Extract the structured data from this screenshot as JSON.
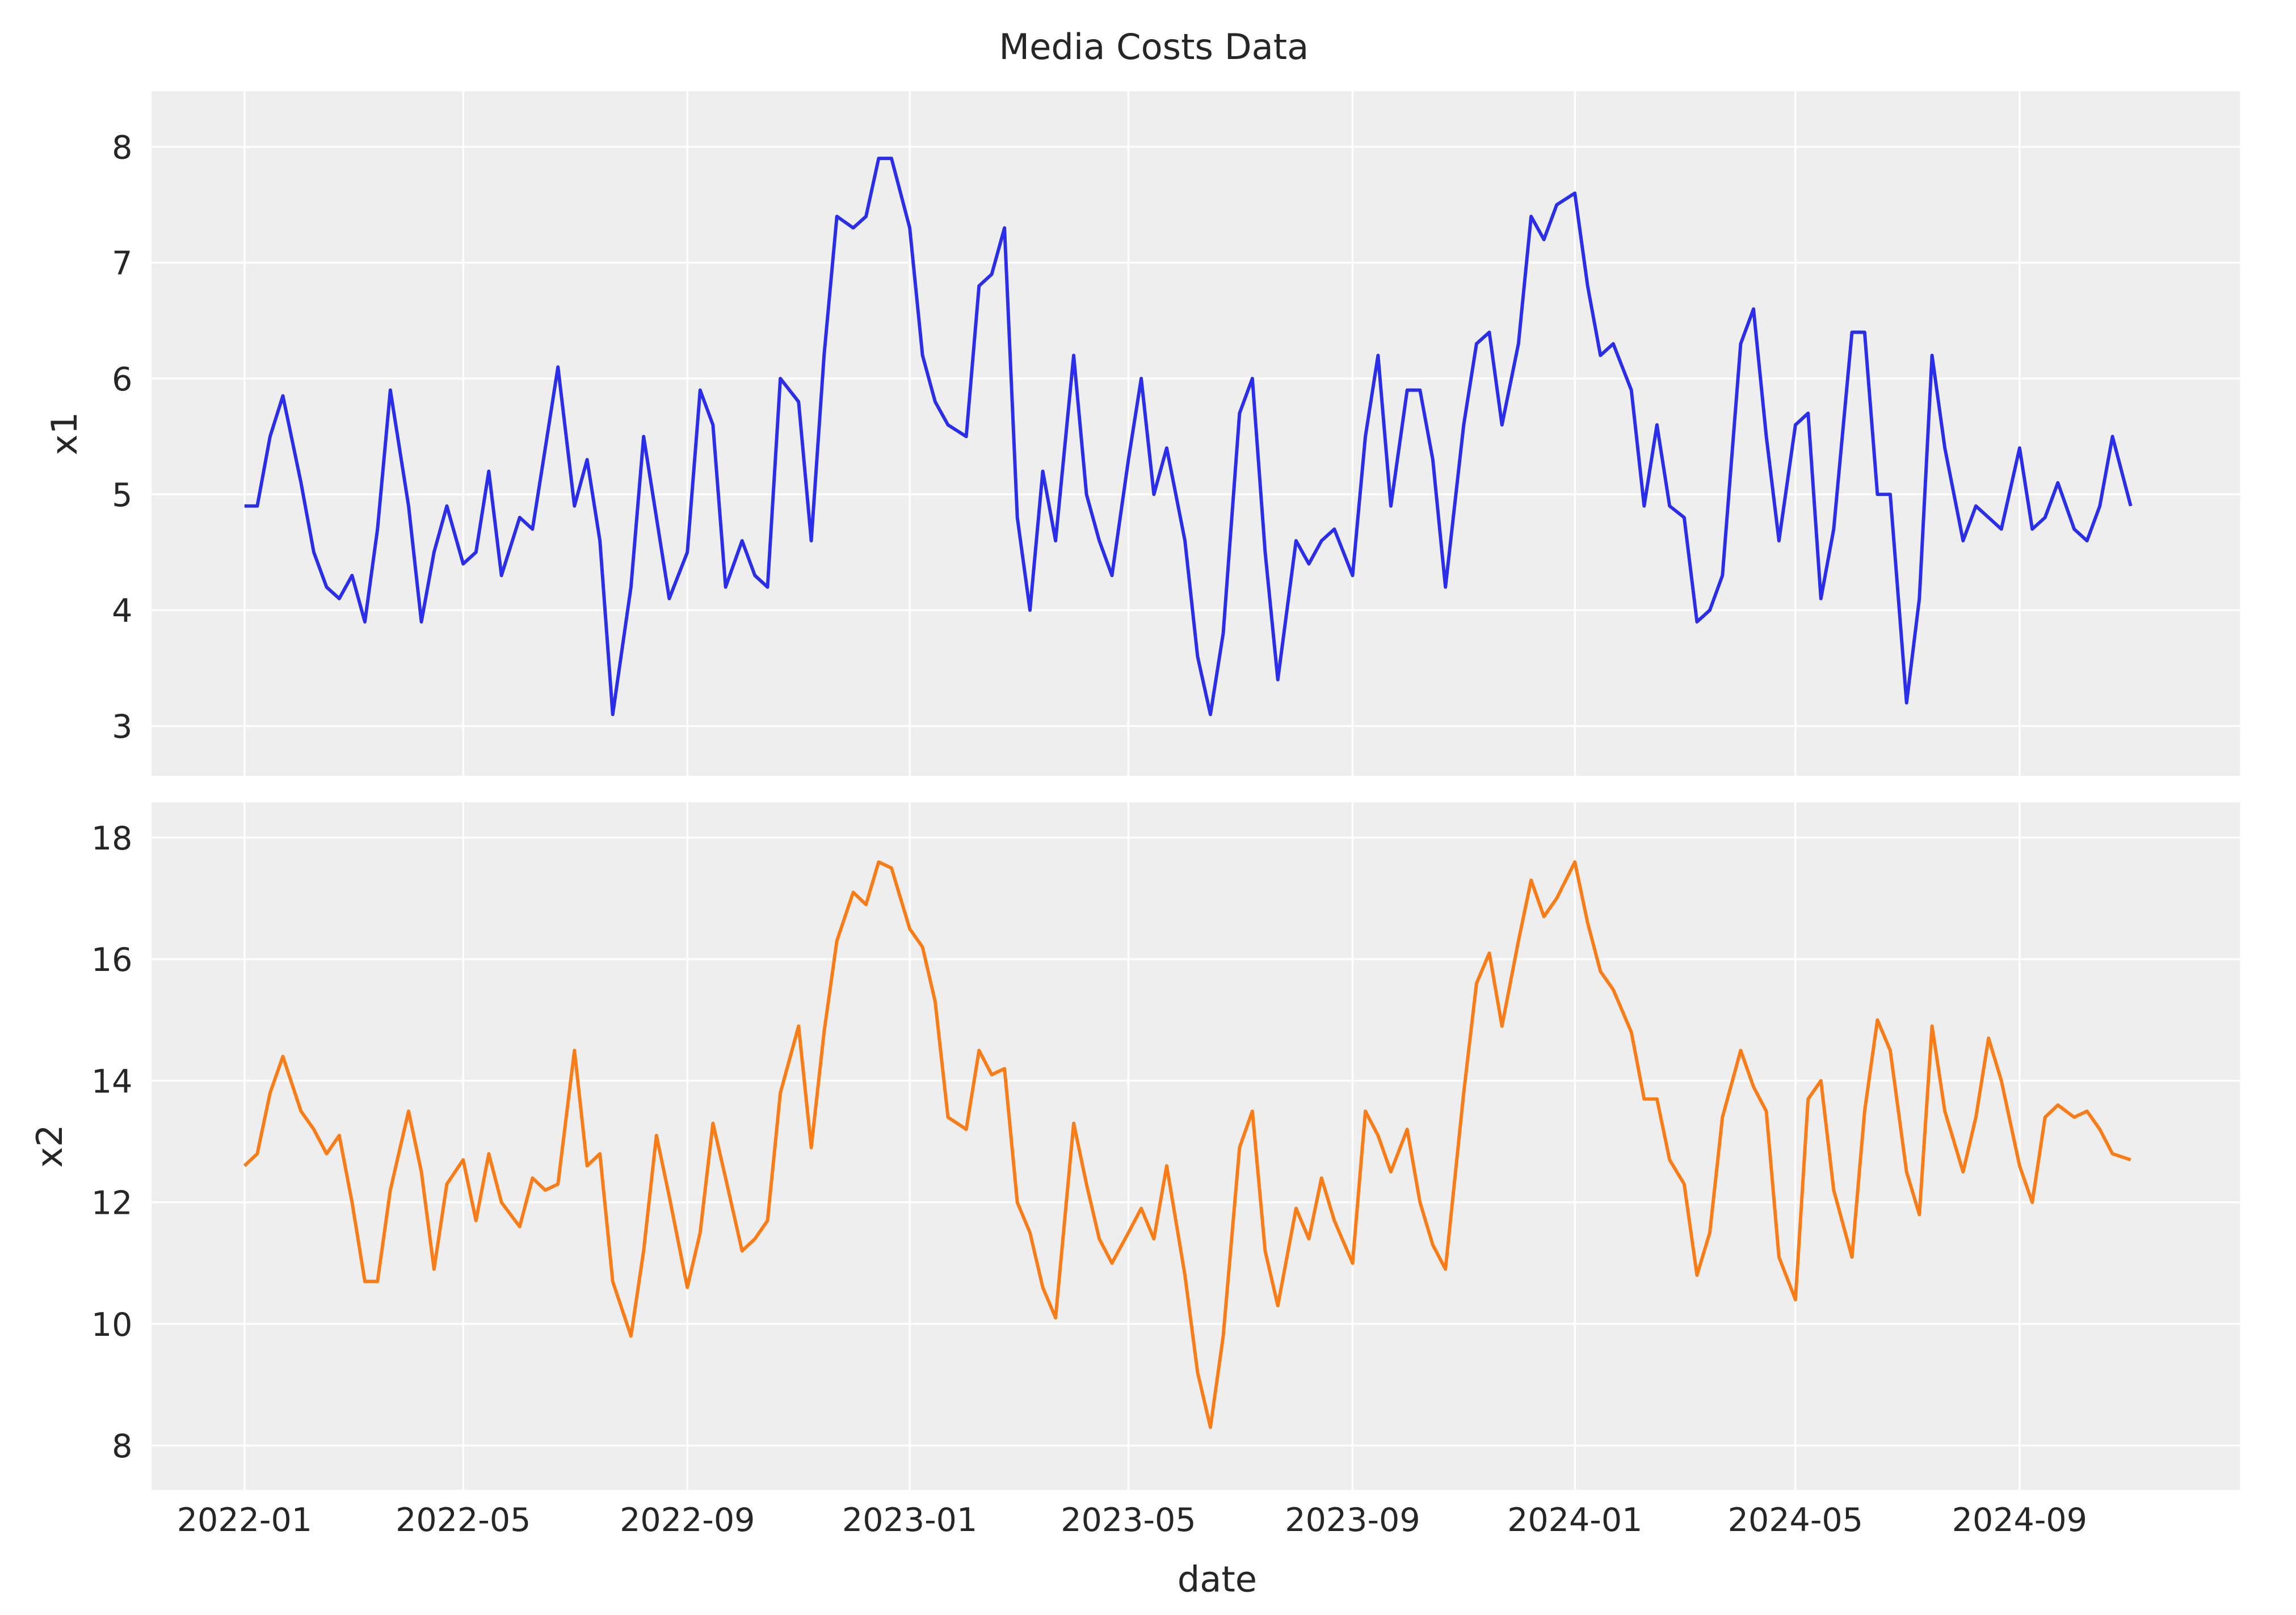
{
  "chart_data": {
    "type": "line",
    "title": "Media Costs Data",
    "xlabel": "date",
    "xlim": [
      "2021-11-11",
      "2024-12-31"
    ],
    "xticks": [
      "2022-01",
      "2022-05",
      "2022-09",
      "2023-01",
      "2023-05",
      "2023-09",
      "2024-01",
      "2024-05",
      "2024-09"
    ],
    "grid": true,
    "x": [
      "2022-01-01",
      "2022-01-08",
      "2022-01-15",
      "2022-01-22",
      "2022-02-01",
      "2022-02-08",
      "2022-02-15",
      "2022-02-22",
      "2022-03-01",
      "2022-03-08",
      "2022-03-15",
      "2022-03-22",
      "2022-04-01",
      "2022-04-08",
      "2022-04-15",
      "2022-04-22",
      "2022-05-01",
      "2022-05-08",
      "2022-05-15",
      "2022-05-22",
      "2022-06-01",
      "2022-06-08",
      "2022-06-15",
      "2022-06-22",
      "2022-07-01",
      "2022-07-08",
      "2022-07-15",
      "2022-07-22",
      "2022-08-01",
      "2022-08-08",
      "2022-08-15",
      "2022-08-22",
      "2022-09-01",
      "2022-09-08",
      "2022-09-15",
      "2022-09-22",
      "2022-10-01",
      "2022-10-08",
      "2022-10-15",
      "2022-10-22",
      "2022-11-01",
      "2022-11-08",
      "2022-11-15",
      "2022-11-22",
      "2022-12-01",
      "2022-12-08",
      "2022-12-15",
      "2022-12-22",
      "2023-01-01",
      "2023-01-08",
      "2023-01-15",
      "2023-01-22",
      "2023-02-01",
      "2023-02-08",
      "2023-02-15",
      "2023-02-22",
      "2023-03-01",
      "2023-03-08",
      "2023-03-15",
      "2023-03-22",
      "2023-04-01",
      "2023-04-08",
      "2023-04-15",
      "2023-04-22",
      "2023-05-01",
      "2023-05-08",
      "2023-05-15",
      "2023-05-22",
      "2023-06-01",
      "2023-06-08",
      "2023-06-15",
      "2023-06-22",
      "2023-07-01",
      "2023-07-08",
      "2023-07-15",
      "2023-07-22",
      "2023-08-01",
      "2023-08-08",
      "2023-08-15",
      "2023-08-22",
      "2023-09-01",
      "2023-09-08",
      "2023-09-15",
      "2023-09-22",
      "2023-10-01",
      "2023-10-08",
      "2023-10-15",
      "2023-10-22",
      "2023-11-01",
      "2023-11-08",
      "2023-11-15",
      "2023-11-22",
      "2023-12-01",
      "2023-12-08",
      "2023-12-15",
      "2023-12-22",
      "2024-01-01",
      "2024-01-08",
      "2024-01-15",
      "2024-01-22",
      "2024-02-01",
      "2024-02-08",
      "2024-02-15",
      "2024-02-22",
      "2024-03-01",
      "2024-03-08",
      "2024-03-15",
      "2024-03-22",
      "2024-04-01",
      "2024-04-08",
      "2024-04-15",
      "2024-04-22",
      "2024-05-01",
      "2024-05-08",
      "2024-05-15",
      "2024-05-22",
      "2024-06-01",
      "2024-06-08",
      "2024-06-15",
      "2024-06-22",
      "2024-07-01",
      "2024-07-08",
      "2024-07-15",
      "2024-07-22",
      "2024-08-01",
      "2024-08-08",
      "2024-08-15",
      "2024-08-22",
      "2024-09-01",
      "2024-09-08",
      "2024-09-15",
      "2024-09-22",
      "2024-10-01",
      "2024-10-08",
      "2024-10-15",
      "2024-10-22",
      "2024-11-01"
    ],
    "panels": [
      {
        "ylabel": "x1",
        "ylim": [
          2.57,
          8.48
        ],
        "yticks": [
          "3",
          "4",
          "5",
          "6",
          "7",
          "8"
        ],
        "color": "#2a2eec",
        "values": [
          4.9,
          4.9,
          5.5,
          5.85,
          5.1,
          4.5,
          4.2,
          4.1,
          4.3,
          3.9,
          4.7,
          5.9,
          4.9,
          3.9,
          4.5,
          4.9,
          4.4,
          4.5,
          5.2,
          4.3,
          4.8,
          4.7,
          5.4,
          6.1,
          4.9,
          5.3,
          4.6,
          3.1,
          4.2,
          5.5,
          4.8,
          4.1,
          4.5,
          5.9,
          5.6,
          4.2,
          4.6,
          4.3,
          4.2,
          6.0,
          5.8,
          4.6,
          6.2,
          7.4,
          7.3,
          7.4,
          7.9,
          7.9,
          7.3,
          6.2,
          5.8,
          5.6,
          5.5,
          6.8,
          6.9,
          7.3,
          4.8,
          4.0,
          5.2,
          4.6,
          6.2,
          5.0,
          4.6,
          4.3,
          5.3,
          6.0,
          5.0,
          5.4,
          4.6,
          3.6,
          3.1,
          3.8,
          5.7,
          6.0,
          4.5,
          3.4,
          4.6,
          4.4,
          4.6,
          4.7,
          4.3,
          5.5,
          6.2,
          4.9,
          5.9,
          5.9,
          5.3,
          4.2,
          5.6,
          6.3,
          6.4,
          5.6,
          6.3,
          7.4,
          7.2,
          7.5,
          7.6,
          6.8,
          6.2,
          6.3,
          5.9,
          4.9,
          5.6,
          4.9,
          4.8,
          3.9,
          4.0,
          4.3,
          6.3,
          6.6,
          5.5,
          4.6,
          5.6,
          5.7,
          4.1,
          4.7,
          6.4,
          6.4,
          5.0,
          5.0,
          3.2,
          4.1,
          6.2,
          5.4,
          4.6,
          4.9,
          4.8,
          4.7,
          5.4,
          4.7,
          4.8,
          5.1,
          4.7,
          4.6,
          4.9,
          5.5,
          4.9
        ]
      },
      {
        "ylabel": "x2",
        "ylim": [
          7.27,
          18.58
        ],
        "yticks": [
          "8",
          "10",
          "12",
          "14",
          "16",
          "18"
        ],
        "color": "#fa7c17",
        "values": [
          12.6,
          12.8,
          13.8,
          14.4,
          13.5,
          13.2,
          12.8,
          13.1,
          12.0,
          10.7,
          10.7,
          12.2,
          13.5,
          12.5,
          10.9,
          12.3,
          12.7,
          11.7,
          12.8,
          12.0,
          11.6,
          12.4,
          12.2,
          12.3,
          14.5,
          12.6,
          12.8,
          10.7,
          9.8,
          11.2,
          13.1,
          12.1,
          10.6,
          11.5,
          13.3,
          12.4,
          11.2,
          11.4,
          11.7,
          13.8,
          14.9,
          12.9,
          14.8,
          16.3,
          17.1,
          16.9,
          17.6,
          17.5,
          16.5,
          16.2,
          15.3,
          13.4,
          13.2,
          14.5,
          14.1,
          14.2,
          12.0,
          11.5,
          10.6,
          10.1,
          13.3,
          12.3,
          11.4,
          11.0,
          11.5,
          11.9,
          11.4,
          12.6,
          10.8,
          9.2,
          8.3,
          9.8,
          12.9,
          13.5,
          11.2,
          10.3,
          11.9,
          11.4,
          12.4,
          11.7,
          11.0,
          13.5,
          13.1,
          12.5,
          13.2,
          12.0,
          11.3,
          10.9,
          13.8,
          15.6,
          16.1,
          14.9,
          16.3,
          17.3,
          16.7,
          17.0,
          17.6,
          16.6,
          15.8,
          15.5,
          14.8,
          13.7,
          13.7,
          12.7,
          12.3,
          10.8,
          11.5,
          13.4,
          14.5,
          13.9,
          13.5,
          11.1,
          10.4,
          13.7,
          14.0,
          12.2,
          11.1,
          13.5,
          15.0,
          14.5,
          12.5,
          11.8,
          14.9,
          13.5,
          12.5,
          13.4,
          14.7,
          14.0,
          12.6,
          12.0,
          13.4,
          13.6,
          13.4,
          13.5,
          13.2,
          12.8,
          12.7
        ]
      }
    ]
  }
}
